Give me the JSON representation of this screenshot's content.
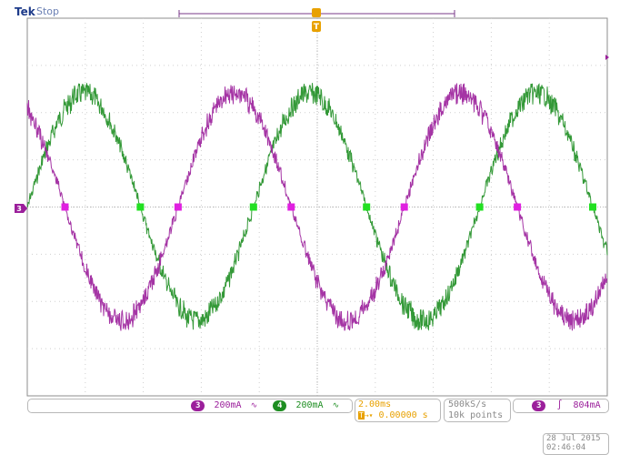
{
  "header": {
    "brand": "Tek",
    "status": "Stop"
  },
  "colors": {
    "ch3": "#9b1f9b",
    "ch4": "#1e8e22",
    "trigger": "#e8a100",
    "bg": "#ffffff",
    "grid": "#c8c8c8",
    "brand": "#1d3b8a"
  },
  "markers": {
    "ch3_ground": "3",
    "trigger_position": "T"
  },
  "channels": [
    {
      "id": "3",
      "scale": "200mA",
      "bandwidth_icon": "bw-limit-icon"
    },
    {
      "id": "4",
      "scale": "200mA",
      "bandwidth_icon": "bw-limit-icon"
    }
  ],
  "timebase": {
    "scale": "2.00ms",
    "delay": "0.00000 s"
  },
  "acquisition": {
    "rate": "500kS/s",
    "points": "10k points"
  },
  "trigger": {
    "source": "3",
    "slope_icon": "rising-edge-icon",
    "level": "804mA"
  },
  "datetime": {
    "date": "28 Jul  2015",
    "time": "02:46:04"
  },
  "waveform_data": {
    "divisions": {
      "horizontal": 10,
      "vertical": 8
    },
    "amplitude_divisions": 2.4,
    "period_divisions": 3.9,
    "ch3_phase_deg": 120,
    "ch4_phase_deg": 0
  }
}
